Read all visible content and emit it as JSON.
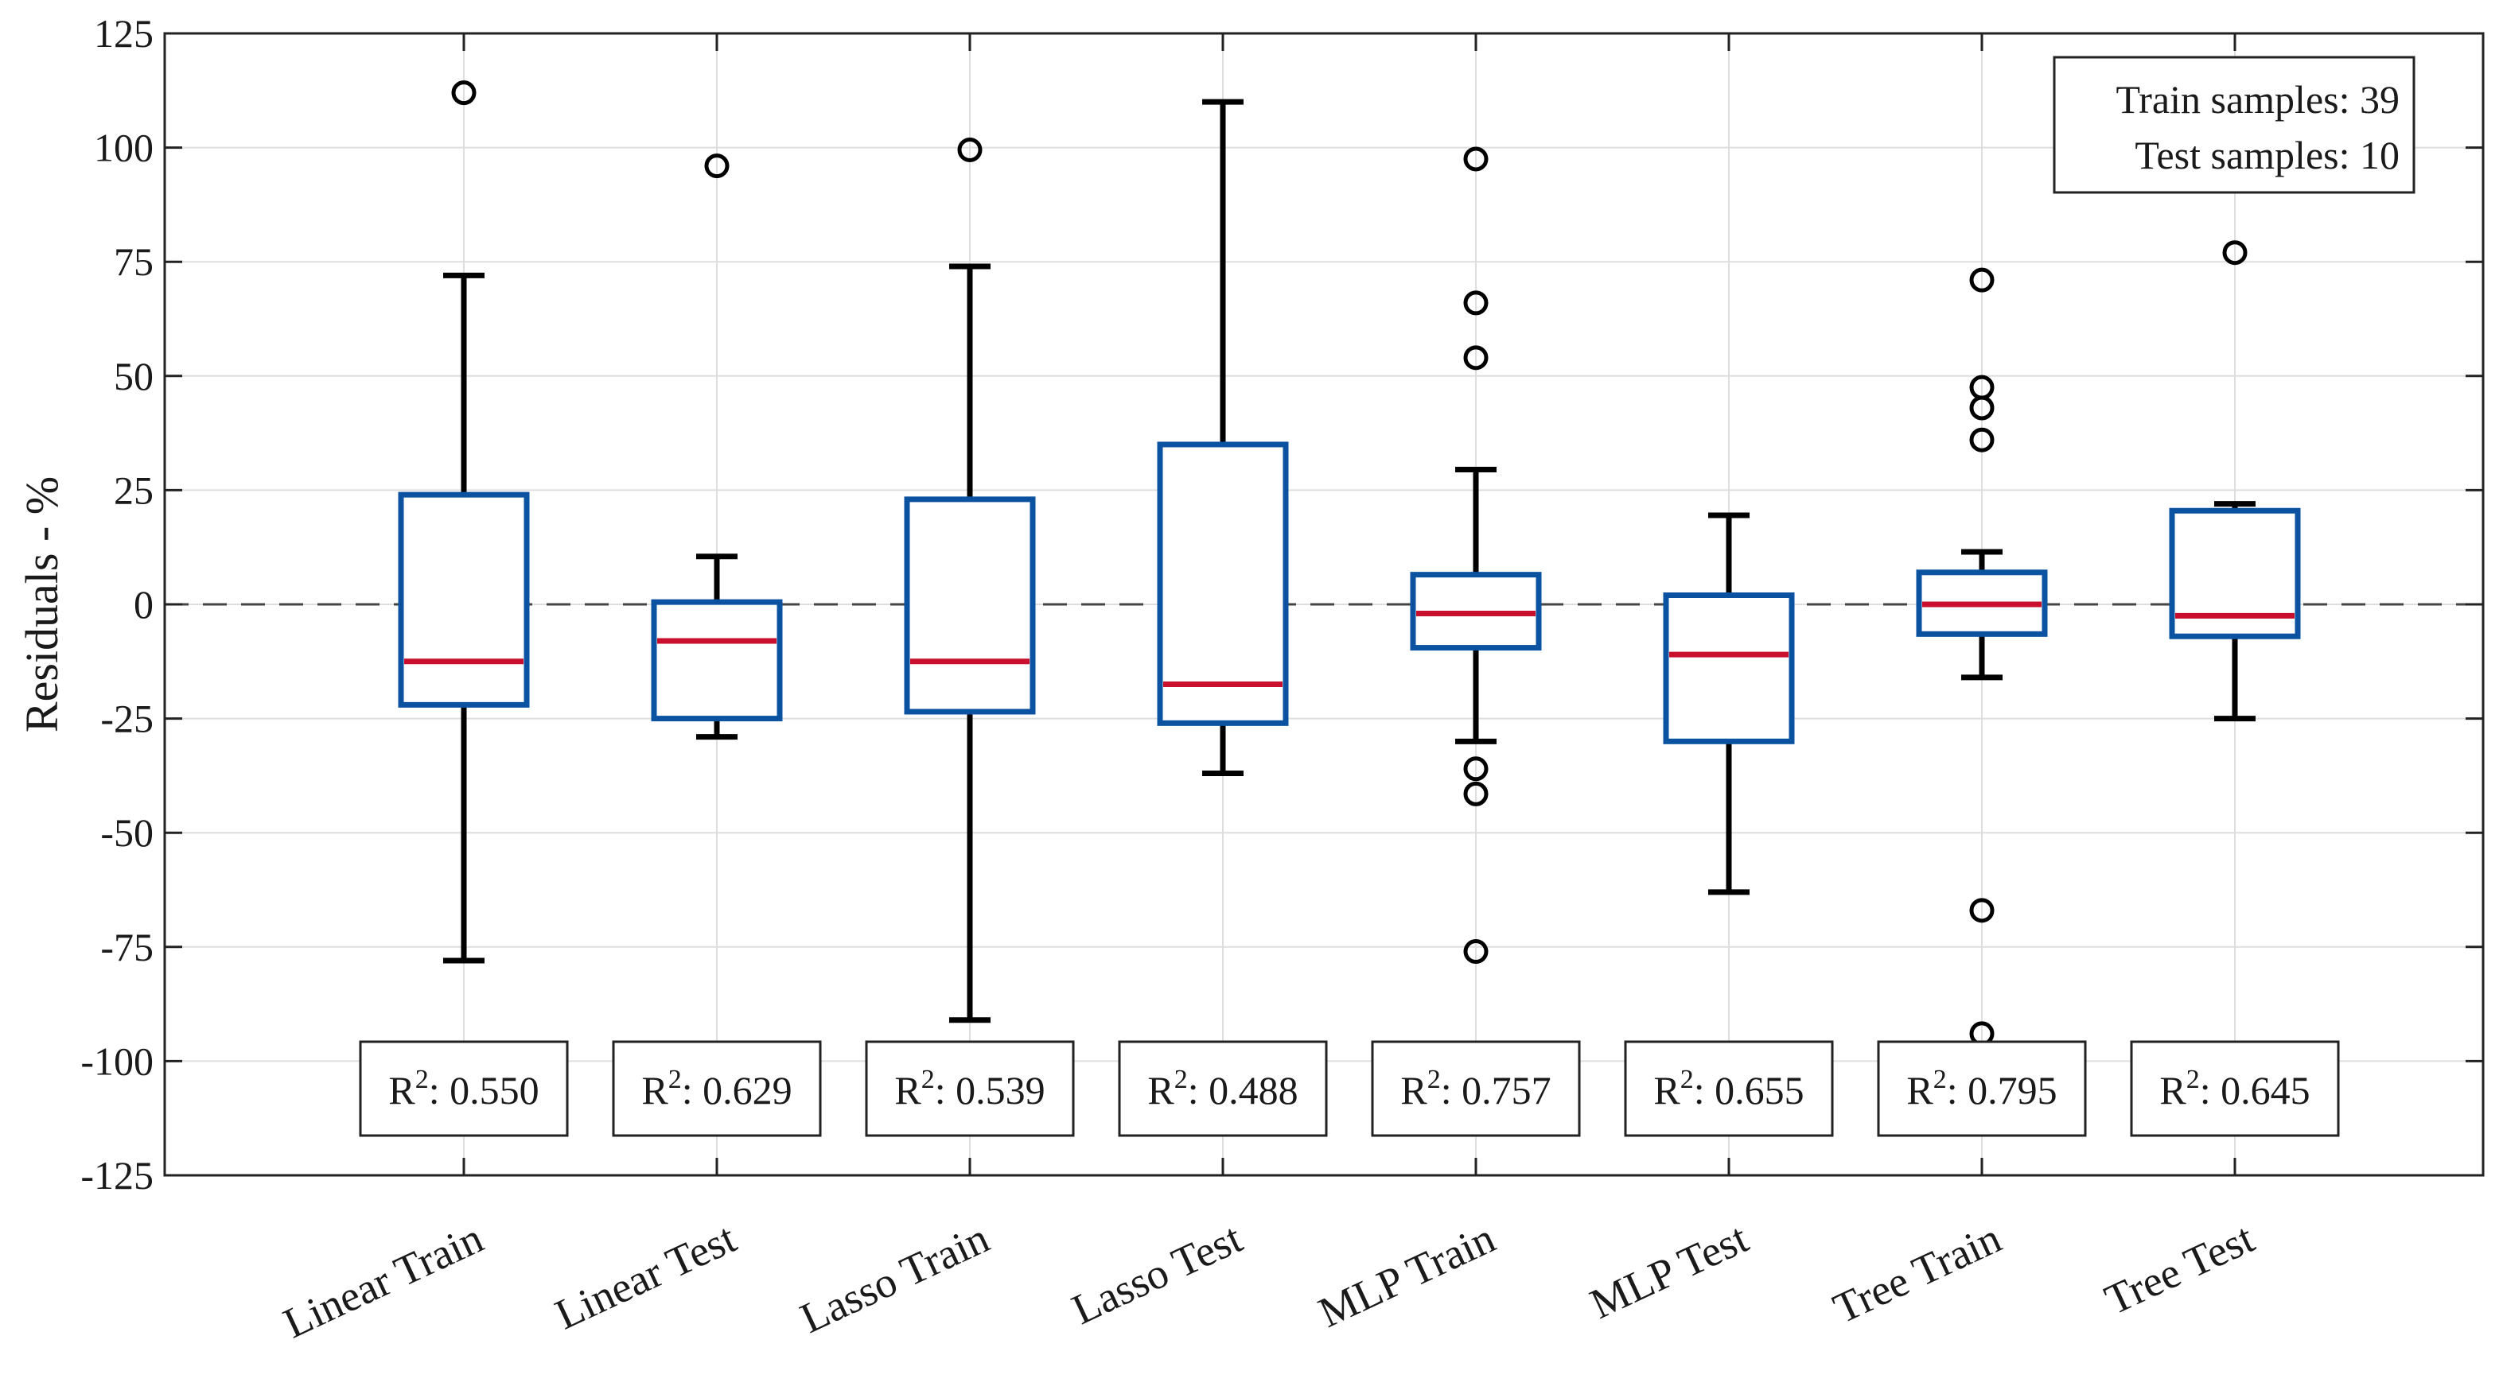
{
  "chart_data": {
    "type": "box",
    "title": "",
    "xlabel": "",
    "ylabel": "Residuals - %",
    "ylim": [
      -125,
      125
    ],
    "yticks": [
      125,
      100,
      75,
      50,
      25,
      0,
      -25,
      -50,
      -75,
      -100,
      -125
    ],
    "grid": true,
    "reference_line": 0,
    "categories": [
      "Linear Train",
      "Linear Test",
      "Lasso Train",
      "Lasso Test",
      "MLP Train",
      "MLP Test",
      "Tree Train",
      "Tree Test"
    ],
    "boxes": [
      {
        "whisker_low": -78,
        "q1": -22,
        "median": -12.5,
        "q3": 24,
        "whisker_high": 72,
        "outliers": [
          112
        ]
      },
      {
        "whisker_low": -29,
        "q1": -25,
        "median": -8,
        "q3": 0.5,
        "whisker_high": 10.5,
        "outliers": [
          96
        ]
      },
      {
        "whisker_low": -91,
        "q1": -23.5,
        "median": -12.5,
        "q3": 23,
        "whisker_high": 74,
        "outliers": [
          99.5
        ]
      },
      {
        "whisker_low": -37,
        "q1": -26,
        "median": -17.5,
        "q3": 35,
        "whisker_high": 110,
        "outliers": []
      },
      {
        "whisker_low": -30,
        "q1": -9.5,
        "median": -2,
        "q3": 6.5,
        "whisker_high": 29.5,
        "outliers": [
          97.5,
          66,
          54,
          -36,
          -41.5,
          -76
        ]
      },
      {
        "whisker_low": -63,
        "q1": -30,
        "median": -11,
        "q3": 2,
        "whisker_high": 19.5,
        "outliers": []
      },
      {
        "whisker_low": -16,
        "q1": -6.5,
        "median": 0,
        "q3": 7,
        "whisker_high": 11.5,
        "outliers": [
          71,
          47.5,
          43,
          36,
          -67,
          -94
        ]
      },
      {
        "whisker_low": -25,
        "q1": -7,
        "median": -2.5,
        "q3": 20.5,
        "whisker_high": 22,
        "outliers": [
          77
        ]
      }
    ],
    "r2_prefix": "R",
    "r2_sup": "2",
    "r2_values": [
      ": 0.550",
      ": 0.629",
      ": 0.539",
      ": 0.488",
      ": 0.757",
      ": 0.655",
      ": 0.795",
      ": 0.645"
    ],
    "info_box": {
      "train": "Train samples: 39",
      "test": "Test samples: 10"
    },
    "colors": {
      "box": "#0b53a0",
      "median": "#c8102e",
      "whisker": "#000000",
      "outlier": "#000000",
      "grid": "#dedede",
      "zero_line": "#444444"
    }
  }
}
